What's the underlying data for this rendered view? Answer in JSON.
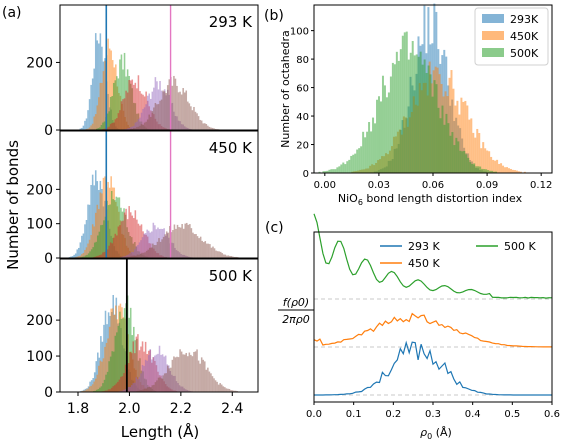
{
  "colors": {
    "blue": "#1f77b4",
    "orange": "#ff7f0e",
    "green": "#2ca02c",
    "red": "#d62728",
    "purple": "#9467bd",
    "brown": "#8c564b",
    "pink": "#e377c2",
    "black": "#000000",
    "grid": "#c8c8c8"
  },
  "chart_data": [
    {
      "panel_label": "(a)",
      "type": "bar",
      "subtype": "stacked-histogram-panels",
      "xlabel": "Length (Å)",
      "ylabel": "Number of bonds",
      "xlim": [
        1.73,
        2.5
      ],
      "xticks": [
        1.8,
        2.0,
        2.2,
        2.4
      ],
      "xtick_labels": [
        "1.8",
        "2.0",
        "2.2",
        "2.4"
      ],
      "ylim": [
        0,
        370
      ],
      "yticks": [
        0,
        100,
        200
      ],
      "ytick_labels": [
        "0",
        "100",
        "200"
      ],
      "series_colors": [
        "blue",
        "orange",
        "green",
        "red",
        "purple",
        "brown"
      ],
      "panels": [
        {
          "label": "293 K",
          "vline": {
            "x": 2.16,
            "color": "pink"
          },
          "vline2": {
            "x": 1.91,
            "color": "blue"
          },
          "yticks": [
            0,
            200
          ],
          "ytick_labels": [
            "0",
            "200"
          ],
          "series": [
            {
              "color": "blue",
              "center": 1.88,
              "sigma": 0.025,
              "peak": 290
            },
            {
              "color": "orange",
              "center": 1.92,
              "sigma": 0.03,
              "peak": 250
            },
            {
              "color": "green",
              "center": 1.97,
              "sigma": 0.035,
              "peak": 200
            },
            {
              "color": "red",
              "center": 2.02,
              "sigma": 0.045,
              "peak": 150
            },
            {
              "color": "purple",
              "center": 2.11,
              "sigma": 0.045,
              "peak": 140
            },
            {
              "color": "brown",
              "center": 2.17,
              "sigma": 0.06,
              "peak": 140
            }
          ]
        },
        {
          "label": "450 K",
          "vline": {
            "x": 2.16,
            "color": "pink"
          },
          "vline2": {
            "x": 1.91,
            "color": "blue"
          },
          "yticks": [
            0,
            100,
            200
          ],
          "ytick_labels": [
            "0",
            "100",
            "200"
          ],
          "series": [
            {
              "color": "blue",
              "center": 1.87,
              "sigma": 0.035,
              "peak": 240
            },
            {
              "color": "orange",
              "center": 1.91,
              "sigma": 0.04,
              "peak": 235
            },
            {
              "color": "green",
              "center": 1.94,
              "sigma": 0.045,
              "peak": 180
            },
            {
              "color": "red",
              "center": 2.0,
              "sigma": 0.05,
              "peak": 135
            },
            {
              "color": "purple",
              "center": 2.1,
              "sigma": 0.05,
              "peak": 95
            },
            {
              "color": "brown",
              "center": 2.2,
              "sigma": 0.08,
              "peak": 95
            }
          ]
        },
        {
          "label": "500 K",
          "vline": {
            "x": 1.99,
            "color": "black"
          },
          "yticks": [
            0,
            100,
            200
          ],
          "ytick_labels": [
            "0",
            "100",
            "200"
          ],
          "series": [
            {
              "color": "blue",
              "center": 1.93,
              "sigma": 0.04,
              "peak": 250
            },
            {
              "color": "orange",
              "center": 1.95,
              "sigma": 0.045,
              "peak": 230
            },
            {
              "color": "green",
              "center": 1.98,
              "sigma": 0.04,
              "peak": 245
            },
            {
              "color": "red",
              "center": 2.04,
              "sigma": 0.05,
              "peak": 140
            },
            {
              "color": "purple",
              "center": 2.1,
              "sigma": 0.05,
              "peak": 115
            },
            {
              "color": "brown",
              "center": 2.22,
              "sigma": 0.07,
              "peak": 120
            }
          ]
        }
      ]
    },
    {
      "panel_label": "(b)",
      "type": "bar",
      "subtype": "overlapping-histogram",
      "xlabel_main": "NiO",
      "xlabel_sub": "6",
      "xlabel_rest": " bond length distortion index",
      "ylabel": "Number of octahedra",
      "xlim": [
        -0.006,
        0.126
      ],
      "xticks": [
        0.0,
        0.03,
        0.06,
        0.09,
        0.12
      ],
      "xtick_labels": [
        "0.00",
        "0.03",
        "0.06",
        "0.09",
        "0.12"
      ],
      "ylim": [
        0,
        118
      ],
      "yticks": [
        0,
        20,
        40,
        60,
        80,
        100
      ],
      "ytick_labels": [
        "0",
        "20",
        "40",
        "60",
        "80",
        "100"
      ],
      "legend_position": "top-right",
      "series": [
        {
          "name": "293K",
          "color": "blue",
          "center": 0.058,
          "sigma": 0.01,
          "peak": 105
        },
        {
          "name": "450K",
          "color": "orange",
          "center": 0.062,
          "sigma": 0.016,
          "peak": 68
        },
        {
          "name": "500K",
          "color": "green",
          "center": 0.046,
          "sigma": 0.016,
          "peak": 85
        }
      ]
    },
    {
      "panel_label": "(c)",
      "type": "line",
      "xlabel_main": "ρ",
      "xlabel_sub": "0",
      "xlabel_rest": " (Å)",
      "ylabel_num": "f(ρ0)",
      "ylabel_den": "2πρ0",
      "xlim": [
        0,
        0.6
      ],
      "xticks": [
        0.0,
        0.1,
        0.2,
        0.3,
        0.4,
        0.5,
        0.6
      ],
      "xtick_labels": [
        "0.0",
        "0.1",
        "0.2",
        "0.3",
        "0.4",
        "0.5",
        "0.6"
      ],
      "legend_position": "top",
      "series": [
        {
          "name": "293 K",
          "color": "blue",
          "offset": 0.0,
          "shape": "peak",
          "center": 0.26,
          "sigma": 0.065,
          "amp": 1.0
        },
        {
          "name": "450 K",
          "color": "orange",
          "offset": 1.0,
          "shape": "broad",
          "center": 0.25,
          "sigma": 0.1,
          "amp": 0.65
        },
        {
          "name": "500 K",
          "color": "green",
          "offset": 2.0,
          "shape": "decay",
          "center": 0.0,
          "sigma": 0.17,
          "amp": 1.35
        }
      ]
    }
  ]
}
